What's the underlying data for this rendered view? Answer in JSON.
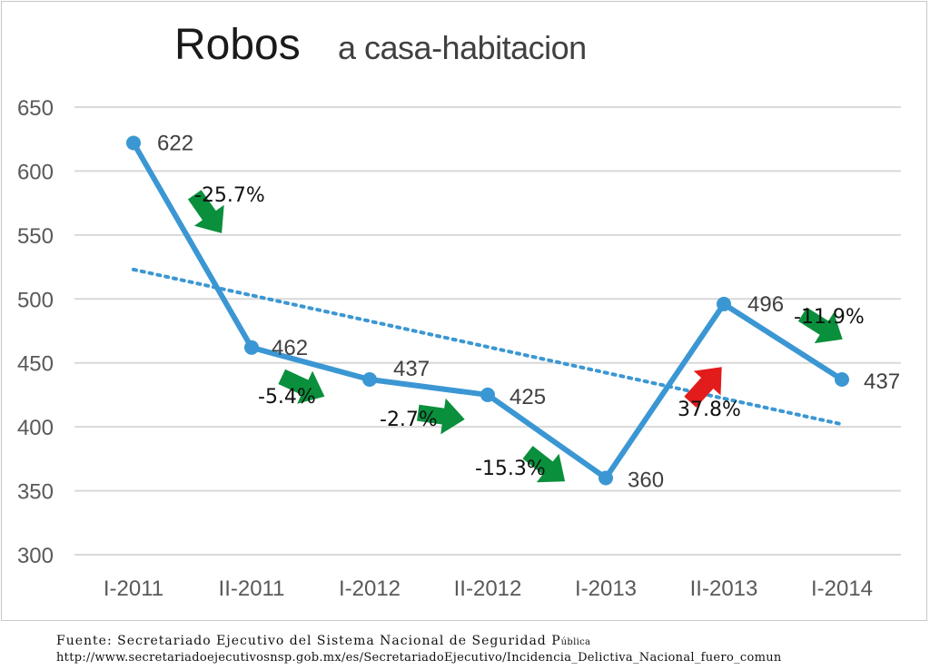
{
  "chart_data": {
    "type": "line",
    "title": "Robos",
    "subtitle": "a casa-habitacion",
    "categories": [
      "I-2011",
      "II-2011",
      "I-2012",
      "II-2012",
      "I-2013",
      "II-2013",
      "I-2014"
    ],
    "values": [
      622,
      462,
      437,
      425,
      360,
      496,
      437
    ],
    "ylim": [
      300,
      650
    ],
    "yticks": [
      "300",
      "350",
      "400",
      "450",
      "500",
      "550",
      "600",
      "650"
    ],
    "grid": true,
    "trendline": {
      "style": "dotted",
      "from": 523,
      "to": 402
    },
    "changes": [
      {
        "label": "-25.7%",
        "direction": "down",
        "color": "#0a8f3c"
      },
      {
        "label": "-5.4%",
        "direction": "down",
        "color": "#0a8f3c"
      },
      {
        "label": "-2.7%",
        "direction": "down",
        "color": "#0a8f3c"
      },
      {
        "label": "-15.3%",
        "direction": "down",
        "color": "#0a8f3c"
      },
      {
        "label": "37.8%",
        "direction": "up",
        "color": "#e21b1b"
      },
      {
        "label": "-11.9%",
        "direction": "down",
        "color": "#0a8f3c"
      }
    ],
    "line_color": "#3b97d3"
  },
  "footer": {
    "source_line": "Fuente: Secretariado Ejecutivo del Sistema Nacional de Seguridad P",
    "source_line_small": "ública",
    "url": "http://www.secretariadoejecutivosnsp.gob.mx/es/SecretariadoEjecutivo/Incidencia_Delictiva_Nacional_fuero_comun"
  }
}
